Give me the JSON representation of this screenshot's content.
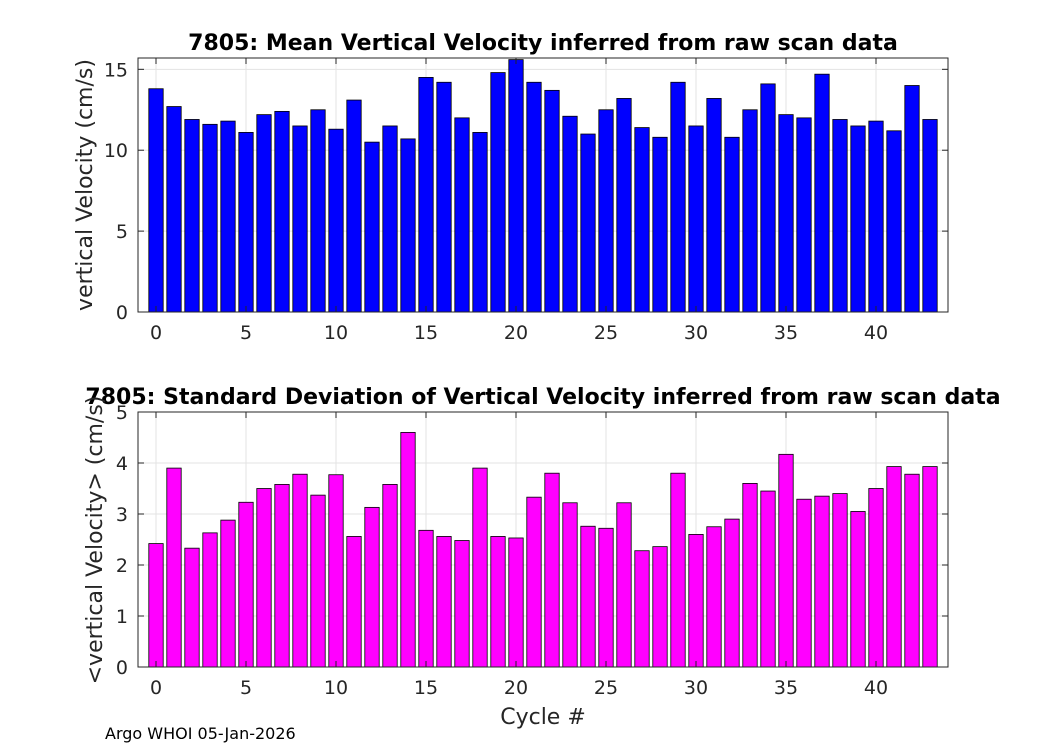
{
  "footer_text": "Argo WHOI 05-Jan-2026",
  "chart_data": [
    {
      "type": "bar",
      "title": "7805: Mean Vertical Velocity inferred from raw scan data",
      "xlabel": "",
      "ylabel": "vertical Velocity (cm/s)",
      "x": [
        0,
        1,
        2,
        3,
        4,
        5,
        6,
        7,
        8,
        9,
        10,
        11,
        12,
        13,
        14,
        15,
        16,
        17,
        18,
        19,
        20,
        21,
        22,
        23,
        24,
        25,
        26,
        27,
        28,
        29,
        30,
        31,
        32,
        33,
        34,
        35,
        36,
        37,
        38,
        39,
        40,
        41,
        42,
        43
      ],
      "values": [
        13.8,
        12.7,
        11.9,
        11.6,
        11.8,
        11.1,
        12.2,
        12.4,
        11.5,
        12.5,
        11.3,
        13.1,
        10.5,
        11.5,
        10.7,
        14.5,
        14.2,
        12.0,
        11.1,
        14.8,
        15.6,
        14.2,
        13.7,
        12.1,
        11.0,
        12.5,
        13.2,
        11.4,
        10.8,
        14.2,
        11.5,
        13.2,
        10.8,
        12.5,
        14.1,
        12.2,
        12.0,
        14.7,
        11.9,
        11.5,
        11.8,
        11.2,
        14.0,
        11.9
      ],
      "xlim": [
        -1,
        44
      ],
      "ylim": [
        0,
        15.7
      ],
      "xticks": [
        0,
        5,
        10,
        15,
        20,
        25,
        30,
        35,
        40
      ],
      "xtick_labels": [
        "0",
        "5",
        "10",
        "15",
        "20",
        "25",
        "30",
        "35",
        "40"
      ],
      "yticks": [
        0,
        5,
        10,
        15
      ],
      "ytick_labels": [
        "0",
        "5",
        "10",
        "15"
      ],
      "bar_color": "#0000ff",
      "grid": true
    },
    {
      "type": "bar",
      "title": "7805: Standard Deviation of Vertical Velocity inferred from raw scan data",
      "xlabel": "Cycle #",
      "ylabel": "<vertical Velocity> (cm/s)",
      "x": [
        0,
        1,
        2,
        3,
        4,
        5,
        6,
        7,
        8,
        9,
        10,
        11,
        12,
        13,
        14,
        15,
        16,
        17,
        18,
        19,
        20,
        21,
        22,
        23,
        24,
        25,
        26,
        27,
        28,
        29,
        30,
        31,
        32,
        33,
        34,
        35,
        36,
        37,
        38,
        39,
        40,
        41,
        42,
        43
      ],
      "values": [
        2.42,
        3.9,
        2.33,
        2.63,
        2.88,
        3.23,
        3.5,
        3.58,
        3.78,
        3.37,
        3.77,
        2.56,
        3.13,
        3.58,
        4.6,
        2.68,
        2.56,
        2.48,
        3.9,
        2.56,
        2.53,
        3.33,
        3.8,
        3.22,
        2.76,
        2.72,
        3.22,
        2.28,
        2.36,
        3.8,
        2.6,
        2.75,
        2.9,
        3.6,
        3.45,
        4.17,
        3.29,
        3.35,
        3.4,
        3.05,
        3.5,
        3.93,
        3.78,
        3.93
      ],
      "xlim": [
        -1,
        44
      ],
      "ylim": [
        0,
        5
      ],
      "xticks": [
        0,
        5,
        10,
        15,
        20,
        25,
        30,
        35,
        40
      ],
      "xtick_labels": [
        "0",
        "5",
        "10",
        "15",
        "20",
        "25",
        "30",
        "35",
        "40"
      ],
      "yticks": [
        0,
        1,
        2,
        3,
        4,
        5
      ],
      "ytick_labels": [
        "0",
        "1",
        "2",
        "3",
        "4",
        "5"
      ],
      "bar_color": "#ff00ff",
      "grid": true
    }
  ]
}
